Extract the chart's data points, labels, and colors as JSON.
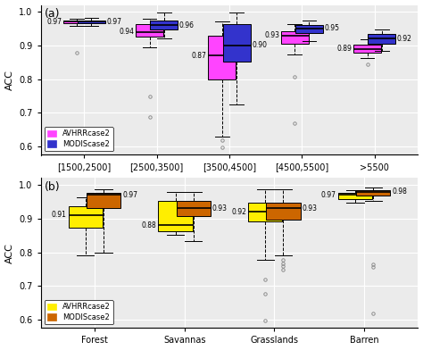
{
  "panel_a": {
    "title": "(a)",
    "ylabel": "ACC",
    "xlabels": [
      "[1500,2500]",
      "[2500,3500]",
      "[3500,4500]",
      "[4500,5500]",
      ">5500"
    ],
    "ylim": [
      0.575,
      1.02
    ],
    "yticks": [
      0.6,
      0.7,
      0.8,
      0.9,
      1.0
    ],
    "avhrr_color": "#FF44FF",
    "modis_color": "#3333CC",
    "avhrr_boxes": [
      {
        "med": 0.97,
        "q1": 0.965,
        "q3": 0.975,
        "whislo": 0.958,
        "whishi": 0.98,
        "fliers": [
          0.878
        ]
      },
      {
        "med": 0.94,
        "q1": 0.926,
        "q3": 0.962,
        "whislo": 0.895,
        "whishi": 0.978,
        "fliers": [
          0.748,
          0.688
        ]
      },
      {
        "med": 0.87,
        "q1": 0.8,
        "q3": 0.93,
        "whislo": 0.63,
        "whishi": 0.97,
        "fliers": [
          0.598,
          0.618
        ]
      },
      {
        "med": 0.93,
        "q1": 0.906,
        "q3": 0.942,
        "whislo": 0.872,
        "whishi": 0.962,
        "fliers": [
          0.808,
          0.668
        ]
      },
      {
        "med": 0.89,
        "q1": 0.878,
        "q3": 0.902,
        "whislo": 0.862,
        "whishi": 0.918,
        "fliers": [
          0.845
        ]
      }
    ],
    "modis_boxes": [
      {
        "med": 0.97,
        "q1": 0.966,
        "q3": 0.975,
        "whislo": 0.958,
        "whishi": 0.982,
        "fliers": []
      },
      {
        "med": 0.96,
        "q1": 0.946,
        "q3": 0.975,
        "whislo": 0.92,
        "whishi": 0.998,
        "fliers": []
      },
      {
        "med": 0.9,
        "q1": 0.852,
        "q3": 0.962,
        "whislo": 0.725,
        "whishi": 0.998,
        "fliers": []
      },
      {
        "med": 0.95,
        "q1": 0.936,
        "q3": 0.96,
        "whislo": 0.912,
        "whishi": 0.975,
        "fliers": []
      },
      {
        "med": 0.92,
        "q1": 0.906,
        "q3": 0.935,
        "whislo": 0.885,
        "whishi": 0.948,
        "fliers": []
      }
    ],
    "avhrr_medians": [
      0.97,
      0.94,
      0.87,
      0.93,
      0.89
    ],
    "modis_medians": [
      0.97,
      0.96,
      0.9,
      0.95,
      0.92
    ],
    "legend_labels": [
      "AVHRRcase2",
      "MODIScase2"
    ]
  },
  "panel_b": {
    "title": "(b)",
    "ylabel": "ACC",
    "xlabels": [
      "Forest",
      "Savannas",
      "Grasslands",
      "Barren"
    ],
    "ylim": [
      0.575,
      1.02
    ],
    "yticks": [
      0.6,
      0.7,
      0.8,
      0.9,
      1.0
    ],
    "avhrr_color": "#FFEE00",
    "modis_color": "#CC6600",
    "avhrr_boxes": [
      {
        "med": 0.91,
        "q1": 0.872,
        "q3": 0.936,
        "whislo": 0.792,
        "whishi": 0.962,
        "fliers": []
      },
      {
        "med": 0.88,
        "q1": 0.862,
        "q3": 0.952,
        "whislo": 0.852,
        "whishi": 0.978,
        "fliers": []
      },
      {
        "med": 0.92,
        "q1": 0.892,
        "q3": 0.948,
        "whislo": 0.778,
        "whishi": 0.988,
        "fliers": [
          0.718,
          0.678,
          0.598
        ]
      },
      {
        "med": 0.97,
        "q1": 0.958,
        "q3": 0.975,
        "whislo": 0.948,
        "whishi": 0.985,
        "fliers": []
      }
    ],
    "modis_boxes": [
      {
        "med": 0.97,
        "q1": 0.932,
        "q3": 0.975,
        "whislo": 0.798,
        "whishi": 0.988,
        "fliers": []
      },
      {
        "med": 0.93,
        "q1": 0.908,
        "q3": 0.952,
        "whislo": 0.832,
        "whishi": 0.978,
        "fliers": []
      },
      {
        "med": 0.93,
        "q1": 0.898,
        "q3": 0.948,
        "whislo": 0.792,
        "whishi": 0.988,
        "fliers": [
          0.748,
          0.758,
          0.768,
          0.778
        ]
      },
      {
        "med": 0.98,
        "q1": 0.968,
        "q3": 0.985,
        "whislo": 0.952,
        "whishi": 0.992,
        "fliers": [
          0.765,
          0.755,
          0.618
        ]
      }
    ],
    "avhrr_medians": [
      0.91,
      0.88,
      0.92,
      0.97
    ],
    "modis_medians": [
      0.97,
      0.93,
      0.93,
      0.98
    ],
    "legend_labels": [
      "AVHRRcase2",
      "MODIScase2"
    ]
  }
}
